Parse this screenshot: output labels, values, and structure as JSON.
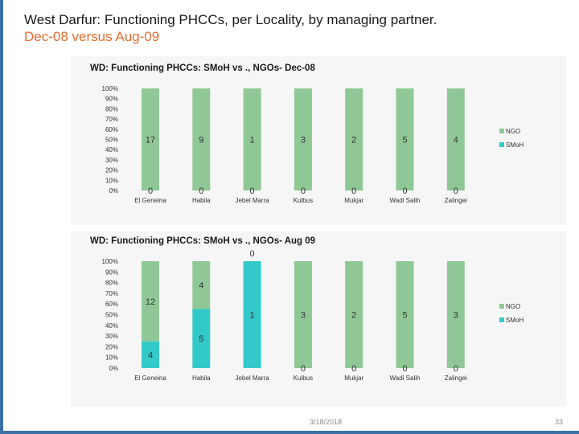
{
  "slide": {
    "title": "West Darfur: Functioning PHCCs, per Locality, by managing partner.",
    "subtitle": "Dec-08 versus Aug-09",
    "footer_date": "3/18/2018",
    "page_number": "33"
  },
  "colors": {
    "ngo": "#8fc896",
    "smoh": "#33c9c9",
    "accent": "#e46c2d",
    "border": "#3a6fa8"
  },
  "chart_data": [
    {
      "type": "bar",
      "stacked": "percent",
      "title": "WD: Functioning PHCCs: SMoH vs ., NGOs- Dec-08",
      "categories": [
        "El Geneina",
        "Habila",
        "Jebel Marra",
        "Kulbus",
        "Mukjar",
        "Wadi Salih",
        "Zalingei"
      ],
      "series": [
        {
          "name": "NGO",
          "values": [
            17,
            9,
            1,
            3,
            2,
            5,
            4
          ]
        },
        {
          "name": "SMoH",
          "values": [
            0,
            0,
            0,
            0,
            0,
            0,
            0
          ]
        }
      ],
      "ylim": [
        0,
        100
      ],
      "yticks": [
        "0%",
        "10%",
        "20%",
        "30%",
        "40%",
        "50%",
        "60%",
        "70%",
        "80%",
        "90%",
        "100%"
      ],
      "legend_position": "right",
      "grid": false
    },
    {
      "type": "bar",
      "stacked": "percent",
      "title": "WD: Functioning PHCCs: SMoH vs ., NGOs- Aug 09",
      "categories": [
        "El Geneina",
        "Habila",
        "Jebel Marra",
        "Kulbus",
        "Mukjar",
        "Wadi Salih",
        "Zalingei"
      ],
      "series": [
        {
          "name": "NGO",
          "values": [
            12,
            4,
            0,
            3,
            2,
            5,
            3
          ]
        },
        {
          "name": "SMoH",
          "values": [
            4,
            5,
            1,
            0,
            0,
            0,
            0
          ]
        }
      ],
      "ylim": [
        0,
        100
      ],
      "yticks": [
        "0%",
        "10%",
        "20%",
        "30%",
        "40%",
        "50%",
        "60%",
        "70%",
        "80%",
        "90%",
        "100%"
      ],
      "legend_position": "right",
      "grid": false
    }
  ]
}
